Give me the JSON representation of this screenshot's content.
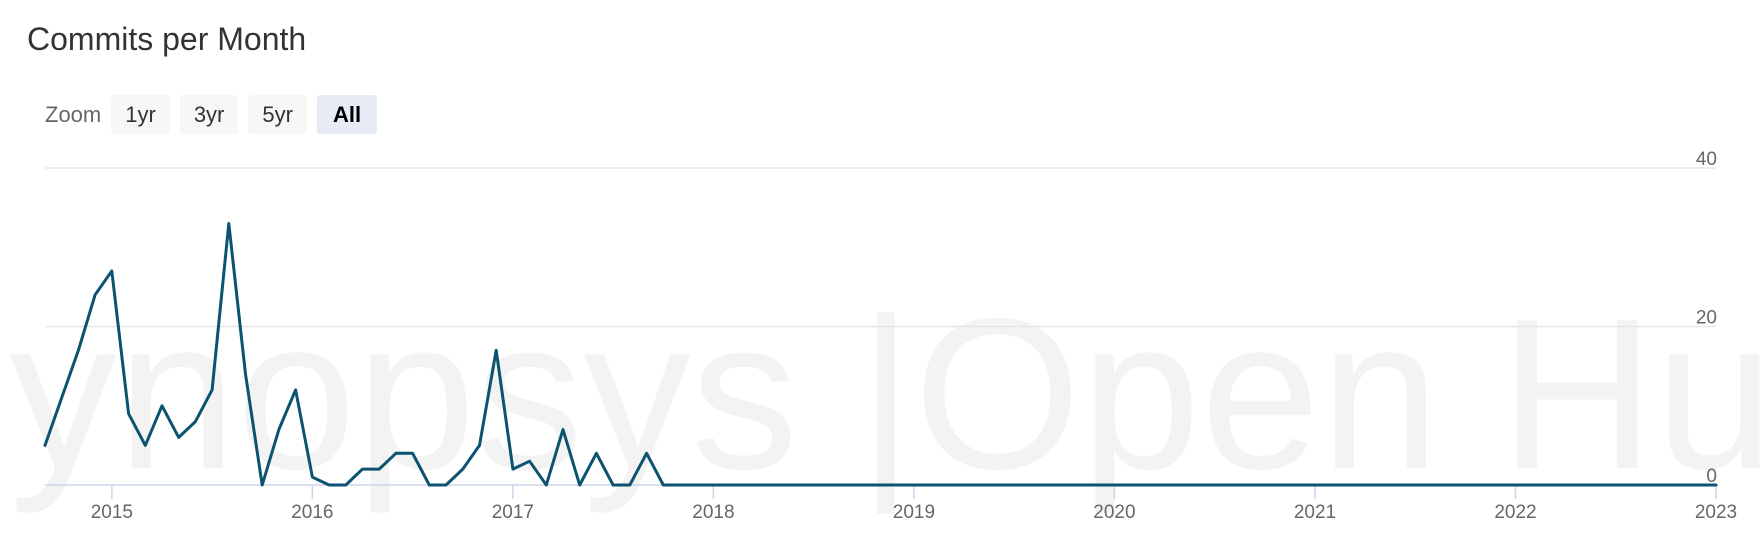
{
  "title": "Commits per Month",
  "watermark": "Synopsys |Open Hub",
  "zoom": {
    "label": "Zoom",
    "buttons": [
      {
        "label": "1yr",
        "active": false
      },
      {
        "label": "3yr",
        "active": false
      },
      {
        "label": "5yr",
        "active": false
      },
      {
        "label": "All",
        "active": true
      }
    ]
  },
  "colors": {
    "line": "#0b5371",
    "grid": "#e6e6e6",
    "axis": "#ccd6eb"
  },
  "chart_data": {
    "type": "line",
    "title": "Commits per Month",
    "xlabel": "",
    "ylabel": "",
    "xlim": [
      "2014-09",
      "2023-01"
    ],
    "ylim": [
      0,
      40
    ],
    "y_ticks": [
      0,
      20,
      40
    ],
    "y_axis_position": "right",
    "x_ticks": [
      "2015",
      "2016",
      "2017",
      "2018",
      "2019",
      "2020",
      "2021",
      "2022",
      "2023"
    ],
    "grid": true,
    "legend": "none",
    "series": [
      {
        "x": [
          "2014-09",
          "2014-10",
          "2014-11",
          "2014-12",
          "2015-01",
          "2015-02",
          "2015-03",
          "2015-04",
          "2015-05",
          "2015-06",
          "2015-07",
          "2015-08",
          "2015-09",
          "2015-10",
          "2015-11",
          "2015-12",
          "2016-01",
          "2016-02",
          "2016-03",
          "2016-04",
          "2016-05",
          "2016-06",
          "2016-07",
          "2016-08",
          "2016-09",
          "2016-10",
          "2016-11",
          "2016-12",
          "2017-01",
          "2017-02",
          "2017-03",
          "2017-04",
          "2017-05",
          "2017-06",
          "2017-07",
          "2017-08",
          "2017-09",
          "2017-10",
          "2017-11",
          "2017-12",
          "2018-01",
          "2018-02",
          "2018-03",
          "2018-04",
          "2018-05",
          "2018-06",
          "2018-07",
          "2018-08",
          "2018-09",
          "2018-10",
          "2018-11",
          "2018-12",
          "2019-01",
          "2019-02",
          "2019-03",
          "2019-04",
          "2019-05",
          "2019-06",
          "2019-07",
          "2019-08",
          "2019-09",
          "2019-10",
          "2019-11",
          "2019-12",
          "2020-01",
          "2020-02",
          "2020-03",
          "2020-04",
          "2020-05",
          "2020-06",
          "2020-07",
          "2020-08",
          "2020-09",
          "2020-10",
          "2020-11",
          "2020-12",
          "2021-01",
          "2021-02",
          "2021-03",
          "2021-04",
          "2021-05",
          "2021-06",
          "2021-07",
          "2021-08",
          "2021-09",
          "2021-10",
          "2021-11",
          "2021-12",
          "2022-01",
          "2022-02",
          "2022-03",
          "2022-04",
          "2022-05",
          "2022-06",
          "2022-07",
          "2022-08",
          "2022-09",
          "2022-10",
          "2022-11",
          "2022-12",
          "2023-01"
        ],
        "values": [
          5,
          11,
          17,
          24,
          27,
          9,
          5,
          10,
          6,
          8,
          12,
          33,
          14,
          0,
          7,
          12,
          1,
          0,
          0,
          2,
          2,
          4,
          4,
          0,
          0,
          2,
          5,
          17,
          2,
          3,
          0,
          7,
          0,
          4,
          0,
          0,
          4,
          0,
          0,
          0,
          0,
          0,
          0,
          0,
          0,
          0,
          0,
          0,
          0,
          0,
          0,
          0,
          0,
          0,
          0,
          0,
          0,
          0,
          0,
          0,
          0,
          0,
          0,
          0,
          0,
          0,
          0,
          0,
          0,
          0,
          0,
          0,
          0,
          0,
          0,
          0,
          0,
          0,
          0,
          0,
          0,
          0,
          0,
          0,
          0,
          0,
          0,
          0,
          0,
          0,
          0,
          0,
          0,
          0,
          0,
          0,
          0,
          0,
          0,
          0,
          0
        ]
      }
    ]
  }
}
